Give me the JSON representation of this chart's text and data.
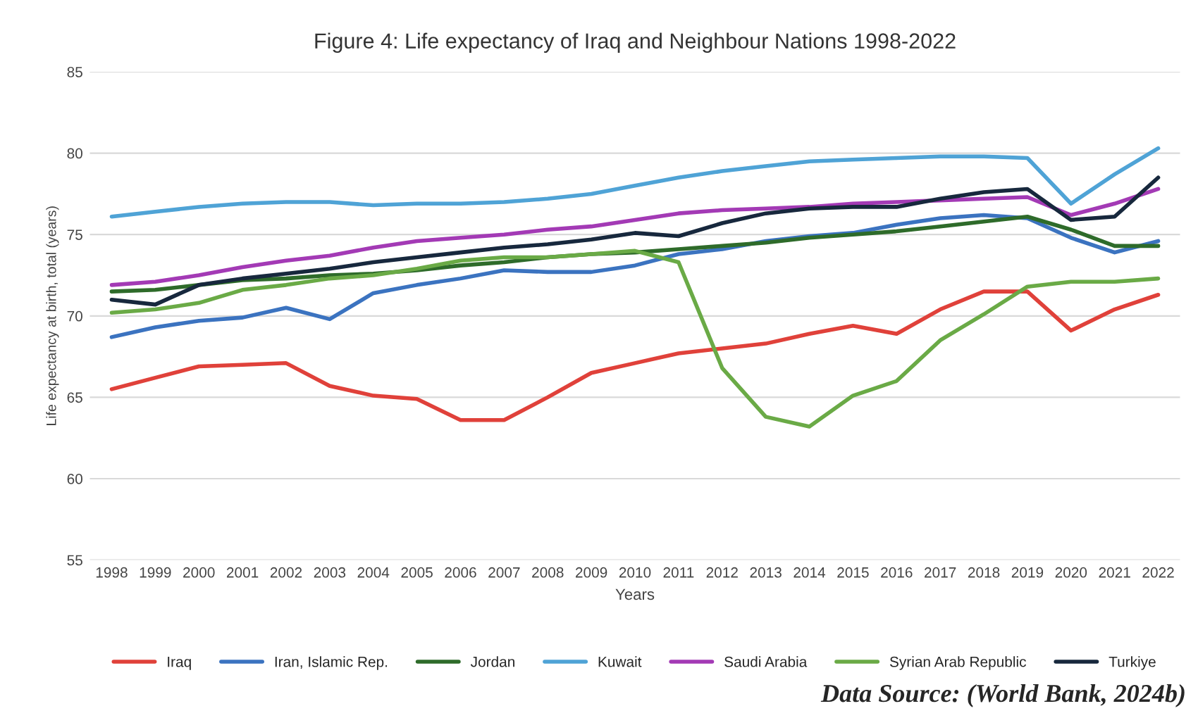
{
  "chart_data": {
    "type": "line",
    "title": "Figure 4: Life expectancy of Iraq and Neighbour Nations 1998-2022",
    "xlabel": "Years",
    "ylabel": "Life expectancy at birth, total (years)",
    "categories": [
      "1998",
      "1999",
      "2000",
      "2001",
      "2002",
      "2003",
      "2004",
      "2005",
      "2006",
      "2007",
      "2008",
      "2009",
      "2010",
      "2011",
      "2012",
      "2013",
      "2014",
      "2015",
      "2016",
      "2017",
      "2018",
      "2019",
      "2020",
      "2021",
      "2022"
    ],
    "series": [
      {
        "name": "Iraq",
        "color": "#e0413a",
        "values": [
          65.5,
          66.2,
          66.9,
          67.0,
          67.1,
          65.7,
          65.1,
          64.9,
          63.6,
          63.6,
          65.0,
          66.5,
          67.1,
          67.7,
          68.0,
          68.3,
          68.9,
          69.4,
          68.9,
          70.4,
          71.5,
          71.5,
          69.1,
          70.4,
          71.3
        ]
      },
      {
        "name": "Iran, Islamic Rep.",
        "color": "#3b73c0",
        "values": [
          68.7,
          69.3,
          69.7,
          69.9,
          70.5,
          69.8,
          71.4,
          71.9,
          72.3,
          72.8,
          72.7,
          72.7,
          73.1,
          73.8,
          74.1,
          74.6,
          74.9,
          75.1,
          75.6,
          76.0,
          76.2,
          76.0,
          74.8,
          73.9,
          74.6
        ]
      },
      {
        "name": "Jordan",
        "color": "#2e6b2a",
        "values": [
          71.5,
          71.6,
          71.9,
          72.2,
          72.3,
          72.5,
          72.6,
          72.8,
          73.1,
          73.3,
          73.6,
          73.8,
          73.9,
          74.1,
          74.3,
          74.5,
          74.8,
          75.0,
          75.2,
          75.5,
          75.8,
          76.1,
          75.3,
          74.3,
          74.3
        ]
      },
      {
        "name": "Kuwait",
        "color": "#4fa3d6",
        "values": [
          76.1,
          76.4,
          76.7,
          76.9,
          77.0,
          77.0,
          76.8,
          76.9,
          76.9,
          77.0,
          77.2,
          77.5,
          78.0,
          78.5,
          78.9,
          79.2,
          79.5,
          79.6,
          79.7,
          79.8,
          79.8,
          79.7,
          76.9,
          78.7,
          80.3
        ]
      },
      {
        "name": "Saudi Arabia",
        "color": "#a33ab5",
        "values": [
          71.9,
          72.1,
          72.5,
          73.0,
          73.4,
          73.7,
          74.2,
          74.6,
          74.8,
          75.0,
          75.3,
          75.5,
          75.9,
          76.3,
          76.5,
          76.6,
          76.7,
          76.9,
          77.0,
          77.1,
          77.2,
          77.3,
          76.2,
          76.9,
          77.8
        ]
      },
      {
        "name": "Syrian Arab Republic",
        "color": "#6aaa46",
        "values": [
          70.2,
          70.4,
          70.8,
          71.6,
          71.9,
          72.3,
          72.5,
          72.9,
          73.4,
          73.6,
          73.6,
          73.8,
          74.0,
          73.3,
          66.8,
          63.8,
          63.2,
          65.1,
          66.0,
          68.5,
          70.1,
          71.8,
          72.1,
          72.1,
          72.3
        ]
      },
      {
        "name": "Turkiye",
        "color": "#17283d",
        "values": [
          71.0,
          70.7,
          71.9,
          72.3,
          72.6,
          72.9,
          73.3,
          73.6,
          73.9,
          74.2,
          74.4,
          74.7,
          75.1,
          74.9,
          75.7,
          76.3,
          76.6,
          76.7,
          76.7,
          77.2,
          77.6,
          77.8,
          75.9,
          76.1,
          78.5
        ]
      }
    ],
    "ylim": [
      55,
      85
    ],
    "yticks": [
      55,
      60,
      65,
      70,
      75,
      80,
      85
    ],
    "grid": "y",
    "legend": "bottom",
    "marker": "none",
    "line_style": "solid",
    "annotations": [
      "Data Source: (World Bank, 2024b)"
    ]
  }
}
